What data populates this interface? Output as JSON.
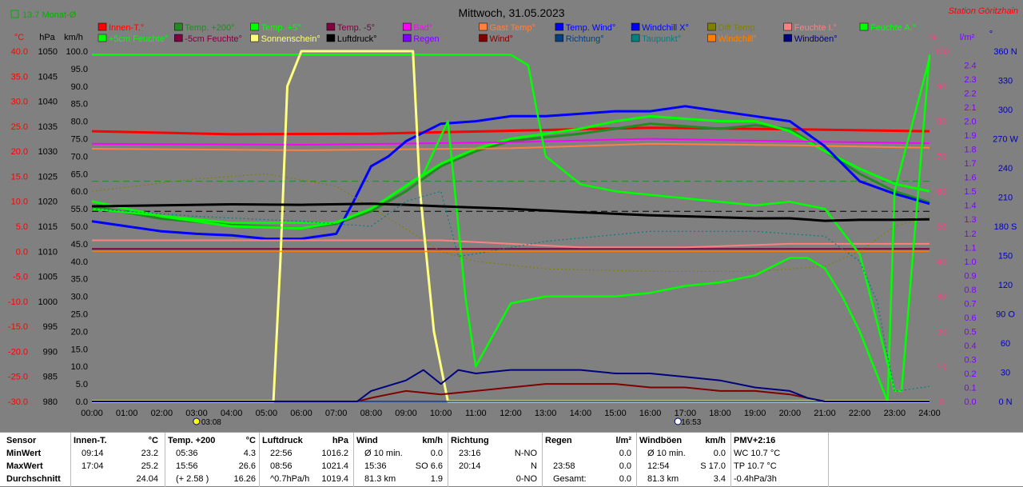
{
  "header": {
    "avg_toggle_label": "13.7 Monat-Ø",
    "title": "Mittwoch, 31.05.2023",
    "station": "Station Göritzhain"
  },
  "axes": {
    "left_units": [
      "°C",
      "hPa",
      "km/h"
    ],
    "right_units": [
      "%",
      "l/m²",
      "°"
    ],
    "celsius_ticks": [
      "40.0",
      "35.0",
      "30.0",
      "25.0",
      "20.0",
      "15.0",
      "10.0",
      "5.0",
      "0.0",
      "-5.0",
      "-10.0",
      "-15.0",
      "-20.0",
      "-25.0",
      "-30.0"
    ],
    "hpa_ticks": [
      "1050",
      "1045",
      "1040",
      "1035",
      "1030",
      "1025",
      "1020",
      "1015",
      "1010",
      "1005",
      "1000",
      "995",
      "990",
      "985",
      "980"
    ],
    "kmh_ticks": [
      "100.0",
      "95.0",
      "90.0",
      "85.0",
      "80.0",
      "75.0",
      "70.0",
      "65.0",
      "60.0",
      "55.0",
      "50.0",
      "45.0",
      "40.0",
      "35.0",
      "30.0",
      "25.0",
      "20.0",
      "15.0",
      "10.0",
      "5.0",
      "0.0"
    ],
    "pct_ticks": [
      "100",
      "90",
      "80",
      "70",
      "60",
      "50",
      "40",
      "30",
      "20",
      "10",
      "0"
    ],
    "rain_ticks": [
      "2.4",
      "2.3",
      "2.2",
      "2.1",
      "2.0",
      "1.9",
      "1.8",
      "1.7",
      "1.6",
      "1.5",
      "1.4",
      "1.3",
      "1.2",
      "1.1",
      "1.0",
      "0.9",
      "0.8",
      "0.7",
      "0.6",
      "0.5",
      "0.4",
      "0.3",
      "0.2",
      "0.1",
      "0.0"
    ],
    "dir_ticks": [
      "360 N",
      "330",
      "300",
      "270 W",
      "240",
      "210",
      "180 S",
      "150",
      "120",
      "90 O",
      "60",
      "30",
      "0 N"
    ],
    "time_ticks": [
      "00:00",
      "01:00",
      "02:00",
      "03:00",
      "04:00",
      "05:00",
      "06:00",
      "07:00",
      "08:00",
      "09:00",
      "10:00",
      "11:00",
      "12:00",
      "13:00",
      "14:00",
      "15:00",
      "16:00",
      "17:00",
      "18:00",
      "19:00",
      "20:00",
      "21:00",
      "22:00",
      "23:00",
      "24:00"
    ],
    "sunrise": "03:08",
    "sunset": "16:53"
  },
  "legend": [
    {
      "label": "Innen-T.°",
      "color": "#ff0000"
    },
    {
      "label": "Temp. +200°",
      "color": "#228b22"
    },
    {
      "label": "Temp. +5°",
      "color": "#00ff00"
    },
    {
      "label": "Temp. -5°",
      "color": "#800040"
    },
    {
      "label": "Bad°",
      "color": "#ff00ff"
    },
    {
      "label": "Gast Temp°",
      "color": "#ff8040"
    },
    {
      "label": "Temp. Wind°",
      "color": "#0000ff"
    },
    {
      "label": "Windchill X°",
      "color": "#0000ff"
    },
    {
      "label": "Diff Temp.",
      "color": "#808000"
    },
    {
      "label": "Feuchte I.°",
      "color": "#ff8080"
    },
    {
      "label": "Feuchte A.°",
      "color": "#00ff00"
    },
    {
      "label": "+5cm Feuchte°",
      "color": "#00ff00"
    },
    {
      "label": "-5cm Feuchte°",
      "color": "#800040"
    },
    {
      "label": "Sonnenschein°",
      "color": "#ffff80"
    },
    {
      "label": "Luftdruck°",
      "color": "#000000"
    },
    {
      "label": "Regen",
      "color": "#8000ff"
    },
    {
      "label": "Wind°",
      "color": "#800000"
    },
    {
      "label": "Richtung°",
      "color": "#004080"
    },
    {
      "label": "Taupunkt°",
      "color": "#008080"
    },
    {
      "label": "Windchill°",
      "color": "#ff8000"
    },
    {
      "label": "Windböen°",
      "color": "#000080"
    }
  ],
  "chart_data": {
    "type": "line",
    "title": "Mittwoch, 31.05.2023",
    "x_unit": "hour",
    "xlim": [
      0,
      24
    ],
    "ylim_celsius": [
      -30,
      40
    ],
    "ylim_hpa": [
      980,
      1050
    ],
    "ylim_kmh": [
      0,
      100
    ],
    "ylim_pct": [
      0,
      100
    ],
    "ylim_rain": [
      0,
      2.5
    ],
    "ylim_dir": [
      0,
      360
    ],
    "series": [
      {
        "name": "Innen-T.°",
        "axis": "celsius",
        "color": "#ff0000",
        "x": [
          0,
          4,
          8,
          12,
          16,
          20,
          24
        ],
        "y": [
          24.0,
          23.4,
          23.5,
          24.1,
          24.7,
          24.4,
          24.0
        ]
      },
      {
        "name": "Temp. +200°",
        "axis": "celsius",
        "color": "#228b22",
        "x": [
          0,
          2,
          4,
          6,
          7,
          8,
          9,
          10,
          11,
          12,
          13,
          14,
          15,
          16,
          17,
          18,
          19,
          20,
          21,
          22,
          23,
          24
        ],
        "y": [
          9.0,
          6.5,
          5.3,
          4.6,
          5.5,
          8.0,
          12.0,
          17.0,
          20.0,
          22.0,
          22.8,
          23.5,
          24.5,
          25.5,
          25.0,
          24.5,
          25.2,
          24.5,
          20.0,
          15.5,
          12.0,
          9.8
        ]
      },
      {
        "name": "Temp. +5°",
        "axis": "celsius",
        "color": "#00ff00",
        "x": [
          0,
          2,
          4,
          6,
          7,
          8,
          9,
          10,
          11,
          12,
          13,
          14,
          15,
          16,
          17,
          18,
          19,
          20,
          21,
          22,
          23,
          24
        ],
        "y": [
          10.0,
          7.0,
          5.0,
          4.6,
          5.8,
          8.5,
          13.0,
          17.5,
          20.5,
          22.5,
          23.5,
          24.5,
          26.0,
          27.0,
          26.5,
          26.0,
          26.0,
          24.0,
          20.0,
          16.5,
          13.5,
          12.0
        ]
      },
      {
        "name": "Temp. -5°",
        "axis": "celsius",
        "color": "#800040",
        "x": [
          0,
          24
        ],
        "y": [
          0.5,
          0.5
        ]
      },
      {
        "name": "Bad°",
        "axis": "celsius",
        "color": "#ff00ff",
        "x": [
          0,
          6,
          12,
          16,
          20,
          24
        ],
        "y": [
          21.5,
          21.3,
          21.8,
          22.5,
          22.0,
          21.6
        ]
      },
      {
        "name": "Gast Temp°",
        "axis": "celsius",
        "color": "#ff8040",
        "x": [
          0,
          6,
          12,
          16,
          20,
          24
        ],
        "y": [
          20.5,
          20.2,
          20.6,
          21.5,
          21.2,
          20.7
        ]
      },
      {
        "name": "Temp. Wind°",
        "axis": "celsius",
        "color": "#0000ff",
        "x": [
          0,
          1,
          2,
          3,
          4,
          5,
          6,
          7,
          7.5,
          8,
          8.5,
          9,
          10,
          11,
          12,
          13,
          14,
          15,
          16,
          17,
          18,
          19,
          20,
          21,
          22,
          23,
          24
        ],
        "y": [
          6.0,
          5.0,
          4.0,
          3.5,
          3.2,
          2.5,
          2.5,
          3.5,
          10.0,
          17.0,
          19.0,
          22.0,
          25.5,
          26.0,
          27.0,
          27.0,
          27.5,
          28.0,
          28.0,
          29.0,
          28.0,
          27.0,
          26.0,
          21.0,
          14.0,
          11.5,
          9.5
        ]
      },
      {
        "name": "Diff Temp.",
        "axis": "celsius",
        "color": "#808000",
        "x": [
          0,
          3,
          5,
          7,
          9,
          10,
          11,
          13,
          16,
          19,
          21,
          22,
          23,
          24
        ],
        "y": [
          12.0,
          14.5,
          15.5,
          13.0,
          4.5,
          0.0,
          -2.0,
          -3.5,
          -4.0,
          -4.0,
          -3.0,
          0.0,
          5.0,
          7.0
        ]
      },
      {
        "name": "Feuchte I.°",
        "axis": "pct",
        "color": "#ff8080",
        "x": [
          0,
          8,
          10,
          12,
          14,
          17,
          20,
          24
        ],
        "y": [
          46,
          46,
          46,
          45,
          44,
          44,
          45,
          45
        ]
      },
      {
        "name": "Feuchte A.°",
        "axis": "pct",
        "color": "#00ff00",
        "x": [
          0,
          12,
          12.5,
          13,
          14,
          15,
          17,
          19,
          20,
          21,
          22,
          23,
          23.2,
          24
        ],
        "y": [
          99,
          99,
          96,
          70,
          62,
          60,
          58,
          56,
          57,
          55,
          42,
          3,
          3,
          99
        ]
      },
      {
        "name": "+5cm Feuchte°",
        "axis": "pct",
        "color": "#00ff00",
        "x": [
          0,
          2,
          4,
          6,
          7,
          8,
          9.5,
          10.2,
          10.7,
          11,
          12,
          13,
          14,
          15,
          16,
          17,
          18,
          19,
          20,
          20.5,
          21,
          21.5,
          22,
          22.8,
          23,
          24
        ],
        "y": [
          55,
          53,
          51,
          51,
          51,
          55,
          65,
          80,
          30,
          10,
          28,
          30,
          30,
          30,
          31,
          33,
          34,
          36,
          41,
          41,
          38,
          30,
          20,
          0,
          60,
          98
        ]
      },
      {
        "name": "Sonnenschein°",
        "axis": "pct",
        "color": "#ffff80",
        "x": [
          0,
          5.2,
          5.4,
          5.6,
          6,
          7,
          8,
          9,
          9.2,
          9.4,
          9.8,
          10.2,
          11,
          24
        ],
        "y": [
          0,
          0,
          40,
          90,
          100,
          100,
          100,
          100,
          100,
          60,
          20,
          0,
          0,
          0
        ]
      },
      {
        "name": "Luftdruck°",
        "axis": "hpa",
        "color": "#000000",
        "x": [
          0,
          2,
          4,
          6,
          8,
          9,
          10,
          12,
          14,
          16,
          18,
          19,
          20,
          21,
          22,
          23,
          24
        ],
        "y": [
          1019.0,
          1019.2,
          1019.4,
          1019.3,
          1019.5,
          1019.3,
          1019.0,
          1018.5,
          1017.8,
          1017.2,
          1016.8,
          1016.6,
          1016.6,
          1016.1,
          1016.3,
          1016.3,
          1016.4
        ]
      },
      {
        "name": "Regen",
        "axis": "rain",
        "color": "#8000ff",
        "x": [
          0,
          24
        ],
        "y": [
          0,
          0
        ]
      },
      {
        "name": "Wind°",
        "axis": "kmh",
        "color": "#800000",
        "x": [
          0,
          7.6,
          8,
          8.5,
          9,
          10,
          11,
          12,
          13,
          14,
          15,
          16,
          17,
          18,
          19,
          20,
          21,
          24
        ],
        "y": [
          0,
          0,
          1,
          2,
          3,
          2,
          3,
          4,
          5,
          5,
          5,
          4,
          4,
          3,
          3,
          2,
          0,
          0
        ]
      },
      {
        "name": "Richtung°",
        "axis": "dir",
        "color": "#004080",
        "x": [
          0,
          24
        ],
        "y": [
          0,
          0
        ]
      },
      {
        "name": "Taupunkt°",
        "axis": "celsius",
        "color": "#008080",
        "x": [
          0,
          3,
          6,
          8,
          9,
          10,
          10.5,
          11,
          13,
          16,
          19,
          21,
          22,
          22.5,
          23,
          24
        ],
        "y": [
          8.5,
          7.0,
          6.0,
          5.0,
          10.0,
          12.0,
          -1.0,
          -0.5,
          2.0,
          4.0,
          4.0,
          3.0,
          -2.0,
          -10.0,
          -28.0,
          -27.0
        ]
      },
      {
        "name": "Windchill°",
        "axis": "celsius",
        "color": "#ff8000",
        "x": [
          0,
          24
        ],
        "y": [
          0,
          0
        ]
      },
      {
        "name": "Windböen°",
        "axis": "kmh",
        "color": "#000080",
        "x": [
          0,
          7.6,
          8,
          9,
          9.5,
          10,
          10.5,
          11,
          12,
          13,
          14,
          15,
          16,
          17,
          18,
          19,
          20,
          20.5,
          21,
          24
        ],
        "y": [
          0,
          0,
          3,
          6,
          9,
          5,
          9,
          8,
          9,
          9,
          9,
          8,
          8,
          7,
          6,
          4,
          3,
          1,
          0,
          0
        ]
      }
    ],
    "reference_lines": [
      {
        "axis": "celsius",
        "value": 14.0,
        "color": "#228b22",
        "style": "dashed"
      },
      {
        "axis": "hpa",
        "value": 1018.0,
        "color": "#000000",
        "style": "dashed"
      }
    ]
  },
  "stats": {
    "sensor": {
      "header": "Sensor",
      "labels": [
        "MinWert",
        "MaxWert",
        "Durchschnitt"
      ]
    },
    "innen": {
      "header": "Innen-T.",
      "unit": "°C",
      "rows": [
        [
          "09:14",
          "23.2"
        ],
        [
          "17:04",
          "25.2"
        ],
        [
          "",
          "24.04"
        ]
      ]
    },
    "temp200": {
      "header": "Temp. +200",
      "unit": "°C",
      "rows": [
        [
          "05:36",
          "4.3"
        ],
        [
          "15:56",
          "26.6"
        ],
        [
          "(+ 2.58 )",
          "16.26"
        ]
      ]
    },
    "luftdruck": {
      "header": "Luftdruck",
      "unit": "hPa",
      "rows": [
        [
          "22:56",
          "1016.2"
        ],
        [
          "08:56",
          "1021.4"
        ],
        [
          "^0.7hPa/h",
          "1019.4"
        ]
      ]
    },
    "wind": {
      "header": "Wind",
      "unit": "km/h",
      "rows": [
        [
          "Ø 10 min.",
          "0.0"
        ],
        [
          "15:36",
          "SO 6.6"
        ],
        [
          "81.3 km",
          "1.9"
        ]
      ]
    },
    "richtung": {
      "header": "Richtung",
      "unit": "",
      "rows": [
        [
          "23:16",
          "N-NO"
        ],
        [
          "20:14",
          "N"
        ],
        [
          "",
          "0-NO"
        ]
      ]
    },
    "regen": {
      "header": "Regen",
      "unit": "l/m²",
      "rows": [
        [
          "",
          "0.0"
        ],
        [
          "23:58",
          "0.0"
        ],
        [
          "Gesamt:",
          "0.0"
        ]
      ]
    },
    "windboeen": {
      "header": "Windböen",
      "unit": "km/h",
      "rows": [
        [
          "Ø 10 min.",
          "0.0"
        ],
        [
          "12:54",
          "S 17.0"
        ],
        [
          "81.3 km",
          "3.4"
        ]
      ]
    },
    "pmv": {
      "header": "PMV+2:16",
      "unit": "",
      "rows": [
        [
          "WC 10.7 °C",
          ""
        ],
        [
          "TP 10.7 °C",
          ""
        ],
        [
          "-0.4hPa/3h",
          ""
        ]
      ]
    }
  }
}
